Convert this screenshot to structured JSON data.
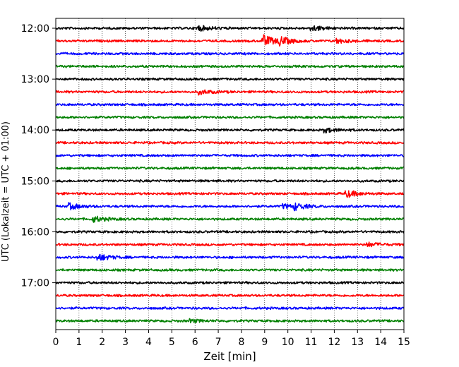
{
  "chart_data": {
    "type": "line",
    "subtype": "helicorder",
    "title": "",
    "xlabel": "Zeit  [min]",
    "ylabel": "UTC (Lokalzeit = UTC + 01:00)",
    "xlim": [
      0,
      15
    ],
    "x_ticks": [
      0,
      1,
      2,
      3,
      4,
      5,
      6,
      7,
      8,
      9,
      10,
      11,
      12,
      13,
      14,
      15
    ],
    "y_tick_labels": [
      "12:00",
      "13:00",
      "14:00",
      "15:00",
      "16:00",
      "17:00"
    ],
    "y_tick_trace_index": [
      0,
      4,
      8,
      12,
      16,
      20
    ],
    "trace_minutes": 15,
    "start_time": "12:00",
    "trace_count": 24,
    "grid": "vertical dotted",
    "legend": "none",
    "color_cycle": [
      "#000000",
      "#ff0000",
      "#0000ff",
      "#008000"
    ],
    "events": [
      {
        "trace": 0,
        "minute": 6.1,
        "amplitude": 4
      },
      {
        "trace": 0,
        "minute": 11.0,
        "amplitude": 4
      },
      {
        "trace": 1,
        "minute": 8.9,
        "amplitude": 9
      },
      {
        "trace": 1,
        "minute": 9.6,
        "amplitude": 5
      },
      {
        "trace": 1,
        "minute": 12.1,
        "amplitude": 3
      },
      {
        "trace": 5,
        "minute": 6.2,
        "amplitude": 3
      },
      {
        "trace": 8,
        "minute": 11.6,
        "amplitude": 3
      },
      {
        "trace": 13,
        "minute": 12.5,
        "amplitude": 5
      },
      {
        "trace": 14,
        "minute": 0.6,
        "amplitude": 4
      },
      {
        "trace": 14,
        "minute": 10.3,
        "amplitude": 4
      },
      {
        "trace": 14,
        "minute": 9.8,
        "amplitude": 3
      },
      {
        "trace": 15,
        "minute": 1.6,
        "amplitude": 4
      },
      {
        "trace": 17,
        "minute": 13.4,
        "amplitude": 3
      },
      {
        "trace": 18,
        "minute": 1.8,
        "amplitude": 5
      },
      {
        "trace": 23,
        "minute": 5.8,
        "amplitude": 2
      }
    ]
  }
}
